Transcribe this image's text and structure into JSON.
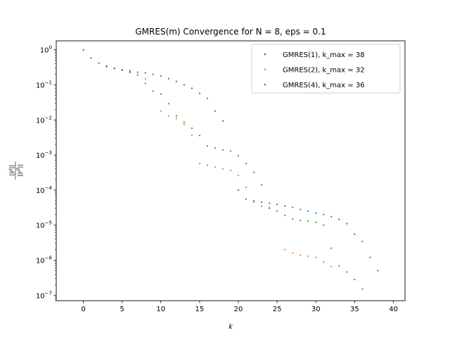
{
  "chart_data": {
    "type": "scatter",
    "title": "GMRES(m) Convergence for N = 8, eps = 0.1",
    "xlabel": "k",
    "ylabel": "||r^j|| / ||r^0||",
    "ylabel_parts": {
      "num": "||r",
      "num_sup": "j",
      "den": "||r",
      "den_sup": "0"
    },
    "xlim": [
      -3.5,
      41.5
    ],
    "ylim": [
      7e-08,
      1.8
    ],
    "yscale": "log",
    "grid": false,
    "legend_position": "top-right",
    "x_ticks": [
      0,
      5,
      10,
      15,
      20,
      25,
      30,
      35,
      40
    ],
    "y_ticks": [
      {
        "value": 1.0,
        "base": "10",
        "exp": "0"
      },
      {
        "value": 0.1,
        "base": "10",
        "exp": "−1"
      },
      {
        "value": 0.01,
        "base": "10",
        "exp": "−2"
      },
      {
        "value": 0.001,
        "base": "10",
        "exp": "−3"
      },
      {
        "value": 0.0001,
        "base": "10",
        "exp": "−4"
      },
      {
        "value": 1e-05,
        "base": "10",
        "exp": "−5"
      },
      {
        "value": 1e-06,
        "base": "10",
        "exp": "−6"
      },
      {
        "value": 1e-07,
        "base": "10",
        "exp": "−7"
      }
    ],
    "series": [
      {
        "name": "GMRES(1), k_max = 38",
        "color": "#1f77b4",
        "points": [
          [
            0,
            1.0
          ],
          [
            1,
            0.58
          ],
          [
            2,
            0.42
          ],
          [
            3,
            0.35
          ],
          [
            4,
            0.3
          ],
          [
            5,
            0.27
          ],
          [
            6,
            0.25
          ],
          [
            7,
            0.23
          ],
          [
            8,
            0.22
          ],
          [
            9,
            0.2
          ],
          [
            10,
            0.18
          ],
          [
            11,
            0.15
          ],
          [
            12,
            0.125
          ],
          [
            13,
            0.1
          ],
          [
            14,
            0.08
          ],
          [
            15,
            0.057
          ],
          [
            16,
            0.041
          ],
          [
            17,
            0.018
          ],
          [
            18,
            0.0093
          ],
          [
            20,
            0.0001
          ],
          [
            21,
            5.5e-05
          ],
          [
            22,
            4.9e-05
          ],
          [
            23,
            4.5e-05
          ],
          [
            24,
            4.2e-05
          ],
          [
            25,
            3.9e-05
          ],
          [
            26,
            3.5e-05
          ],
          [
            27,
            3.2e-05
          ],
          [
            28,
            2.8e-05
          ],
          [
            29,
            2.5e-05
          ],
          [
            30,
            2.2e-05
          ],
          [
            31,
            2e-05
          ],
          [
            32,
            1.75e-05
          ],
          [
            33,
            1.45e-05
          ],
          [
            34,
            1.1e-05
          ],
          [
            35,
            5.5e-06
          ],
          [
            36,
            3.4e-06
          ],
          [
            37,
            1.2e-06
          ],
          [
            38,
            5e-07
          ]
        ]
      },
      {
        "name": "GMRES(2), k_max = 32",
        "color": "#ff7f0e",
        "points": [
          [
            0,
            1.0
          ],
          [
            2,
            0.42
          ],
          [
            4,
            0.29
          ],
          [
            6,
            0.22
          ],
          [
            8,
            0.15
          ],
          [
            10,
            0.018
          ],
          [
            11,
            0.013
          ],
          [
            12,
            0.011
          ],
          [
            13,
            0.0075
          ],
          [
            14,
            0.0037
          ],
          [
            15,
            0.00057
          ],
          [
            16,
            0.00051
          ],
          [
            17,
            0.00045
          ],
          [
            18,
            0.0004
          ],
          [
            19,
            0.00036
          ],
          [
            20,
            0.00026
          ],
          [
            21,
            0.00012
          ],
          [
            22,
            4.5e-05
          ],
          [
            23,
            3.5e-05
          ],
          [
            24,
            3.2e-05
          ],
          [
            26,
            2e-06
          ],
          [
            27,
            1.6e-06
          ],
          [
            28,
            1.4e-06
          ],
          [
            29,
            1.3e-06
          ],
          [
            30,
            1.2e-06
          ],
          [
            31,
            9e-07
          ],
          [
            32,
            6.6e-07
          ]
        ]
      },
      {
        "name": "GMRES(4), k_max = 36",
        "color": "#2ca02c",
        "points": [
          [
            0,
            1.0
          ],
          [
            1,
            0.58
          ],
          [
            2,
            0.42
          ],
          [
            3,
            0.33
          ],
          [
            4,
            0.29
          ],
          [
            5,
            0.26
          ],
          [
            6,
            0.23
          ],
          [
            7,
            0.19
          ],
          [
            8,
            0.11
          ],
          [
            9,
            0.066
          ],
          [
            10,
            0.055
          ],
          [
            11,
            0.029
          ],
          [
            12,
            0.013
          ],
          [
            13,
            0.0087
          ],
          [
            14,
            0.0058
          ],
          [
            15,
            0.0036
          ],
          [
            16,
            0.0018
          ],
          [
            17,
            0.0016
          ],
          [
            18,
            0.0014
          ],
          [
            19,
            0.0013
          ],
          [
            20,
            0.00095
          ],
          [
            21,
            0.00057
          ],
          [
            22,
            0.00032
          ],
          [
            23,
            0.00014
          ],
          [
            24,
            3e-05
          ],
          [
            25,
            2.5e-05
          ],
          [
            26,
            1.9e-05
          ],
          [
            27,
            1.5e-05
          ],
          [
            28,
            1.35e-05
          ],
          [
            29,
            1.3e-05
          ],
          [
            30,
            1.2e-05
          ],
          [
            31,
            1e-05
          ],
          [
            32,
            2.2e-06
          ],
          [
            33,
            6.9e-07
          ],
          [
            34,
            4.6e-07
          ],
          [
            35,
            2.8e-07
          ],
          [
            36,
            1.5e-07
          ]
        ]
      }
    ]
  }
}
